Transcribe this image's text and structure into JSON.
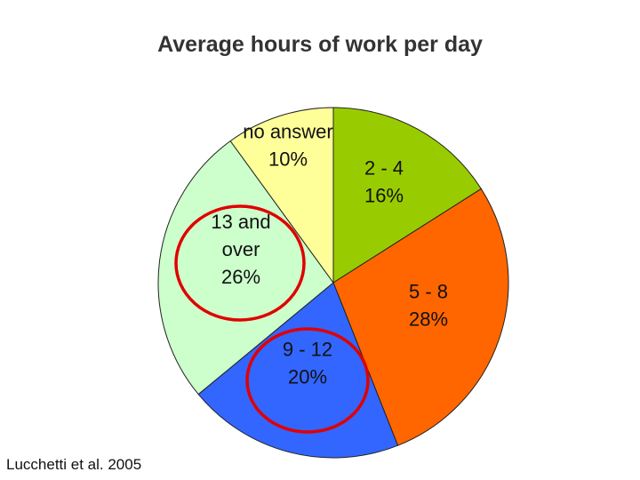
{
  "chart_data": {
    "type": "pie",
    "title": "Average hours of work per day",
    "slices": [
      {
        "label_lines": [
          "2 - 4",
          "16%"
        ],
        "value": 16,
        "color": "#99cc00"
      },
      {
        "label_lines": [
          "5 - 8",
          "28%"
        ],
        "value": 28,
        "color": "#ff6600"
      },
      {
        "label_lines": [
          "9 - 12",
          "20%"
        ],
        "value": 20,
        "color": "#3366ff"
      },
      {
        "label_lines": [
          "13 and",
          "over",
          "26%"
        ],
        "value": 26,
        "color": "#ccffcc"
      },
      {
        "label_lines": [
          "no answer",
          "10%"
        ],
        "value": 10,
        "color": "#ffff99"
      }
    ],
    "highlighted": [
      "13 and over",
      "9 - 12"
    ],
    "highlight_color": "#e00000"
  },
  "source": "Lucchetti et al. 2005"
}
